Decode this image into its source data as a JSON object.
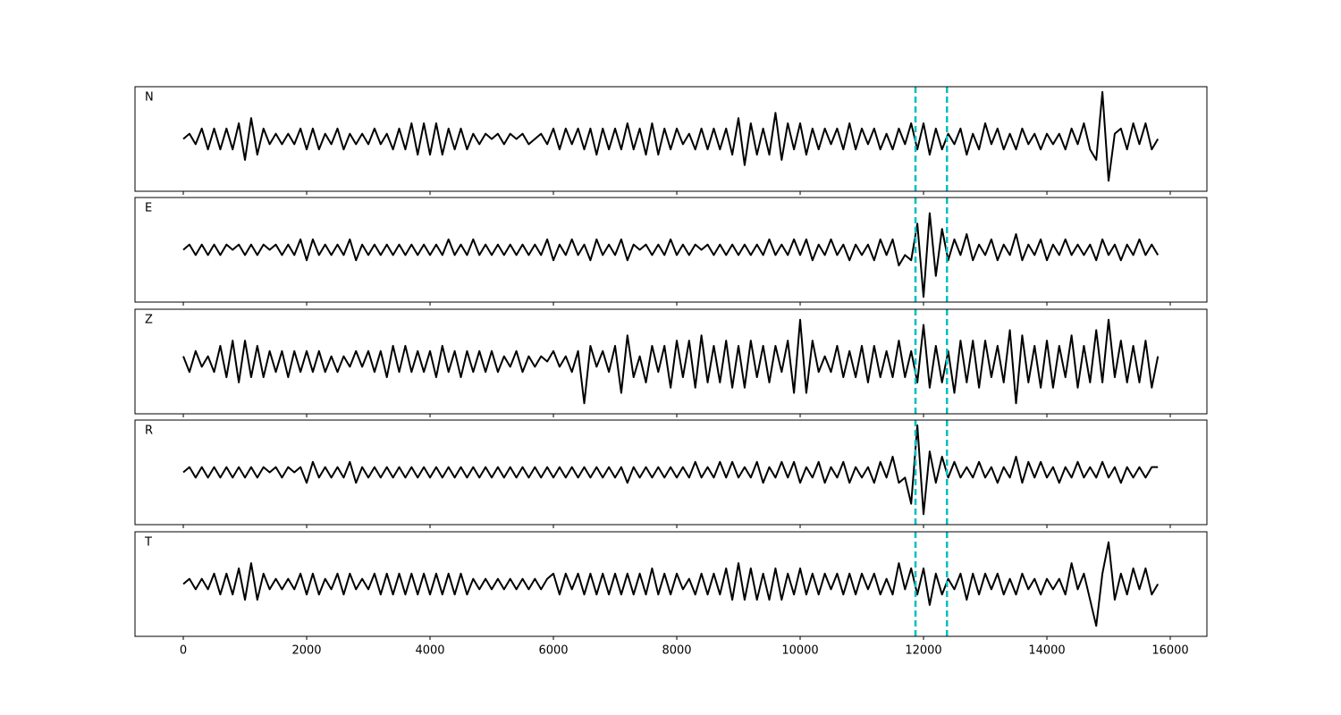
{
  "chart_data": {
    "type": "line",
    "x": [
      0,
      100,
      200,
      300,
      400,
      500,
      600,
      700,
      800,
      900,
      1000,
      1100,
      1200,
      1300,
      1400,
      1500,
      1600,
      1700,
      1800,
      1900,
      2000,
      2100,
      2200,
      2300,
      2400,
      2500,
      2600,
      2700,
      2800,
      2900,
      3000,
      3100,
      3200,
      3300,
      3400,
      3500,
      3600,
      3700,
      3800,
      3900,
      4000,
      4100,
      4200,
      4300,
      4400,
      4500,
      4600,
      4700,
      4800,
      4900,
      5000,
      5100,
      5200,
      5300,
      5400,
      5500,
      5600,
      5700,
      5800,
      5900,
      6000,
      6100,
      6200,
      6300,
      6400,
      6500,
      6600,
      6700,
      6800,
      6900,
      7000,
      7100,
      7200,
      7300,
      7400,
      7500,
      7600,
      7700,
      7800,
      7900,
      8000,
      8100,
      8200,
      8300,
      8400,
      8500,
      8600,
      8700,
      8800,
      8900,
      9000,
      9100,
      9200,
      9300,
      9400,
      9500,
      9600,
      9700,
      9800,
      9900,
      10000,
      10100,
      10200,
      10300,
      10400,
      10500,
      10600,
      10700,
      10800,
      10900,
      11000,
      11100,
      11200,
      11300,
      11400,
      11500,
      11600,
      11700,
      11800,
      11900,
      12000,
      12100,
      12200,
      12300,
      12400,
      12500,
      12600,
      12700,
      12800,
      12900,
      13000,
      13100,
      13200,
      13300,
      13400,
      13500,
      13600,
      13700,
      13800,
      13900,
      14000,
      14100,
      14200,
      14300,
      14400,
      14500,
      14600,
      14700,
      14800,
      14900,
      15000,
      15100,
      15200,
      15300,
      15400,
      15500,
      15600,
      15700,
      15800
    ],
    "series": [
      {
        "name": "N",
        "color": "#000000",
        "values": [
          0,
          1,
          -1,
          2,
          -2,
          2,
          -2,
          2,
          -2,
          3,
          -4,
          4,
          -3,
          2,
          -1,
          1,
          -1,
          1,
          -1,
          2,
          -2,
          2,
          -2,
          1,
          -1,
          2,
          -2,
          1,
          -1,
          1,
          -1,
          2,
          -1,
          1,
          -2,
          2,
          -2,
          3,
          -3,
          3,
          -3,
          3,
          -3,
          2,
          -2,
          2,
          -2,
          1,
          -1,
          1,
          0,
          1,
          -1,
          1,
          0,
          1,
          -1,
          0,
          1,
          -1,
          2,
          -2,
          2,
          -1,
          2,
          -2,
          2,
          -3,
          2,
          -2,
          2,
          -2,
          3,
          -2,
          2,
          -3,
          3,
          -3,
          2,
          -2,
          2,
          -1,
          1,
          -2,
          2,
          -2,
          2,
          -2,
          2,
          -3,
          4,
          -5,
          3,
          -3,
          2,
          -3,
          5,
          -4,
          3,
          -2,
          3,
          -3,
          2,
          -2,
          2,
          -1,
          2,
          -2,
          3,
          -2,
          2,
          -1,
          2,
          -2,
          1,
          -2,
          2,
          -1,
          3,
          -2,
          3,
          -3,
          2,
          -2,
          1,
          -1,
          2,
          -3,
          1,
          -2,
          3,
          -1,
          2,
          -2,
          1,
          -2,
          2,
          -1,
          1,
          -2,
          1,
          -1,
          1,
          -2,
          2,
          -1,
          3,
          -2,
          -4,
          9,
          -8,
          1,
          2,
          -2,
          3,
          -1,
          3,
          -2,
          0
        ]
      },
      {
        "name": "E",
        "color": "#000000",
        "values": [
          0,
          1,
          -1,
          1,
          -1,
          1,
          -1,
          1,
          0,
          1,
          -1,
          1,
          -1,
          1,
          0,
          1,
          -1,
          1,
          -1,
          2,
          -2,
          2,
          -1,
          1,
          -1,
          1,
          -1,
          2,
          -2,
          1,
          -1,
          1,
          -1,
          1,
          -1,
          1,
          -1,
          1,
          -1,
          1,
          -1,
          1,
          -1,
          2,
          -1,
          1,
          -1,
          2,
          -1,
          1,
          -1,
          1,
          -1,
          1,
          -1,
          1,
          -1,
          1,
          -1,
          2,
          -2,
          1,
          -1,
          2,
          -1,
          1,
          -2,
          2,
          -1,
          1,
          -1,
          2,
          -2,
          1,
          0,
          1,
          -1,
          1,
          -1,
          2,
          -1,
          1,
          -1,
          1,
          0,
          1,
          -1,
          1,
          -1,
          1,
          -1,
          1,
          -1,
          1,
          -1,
          2,
          -1,
          1,
          -1,
          2,
          -1,
          2,
          -2,
          1,
          -1,
          2,
          -1,
          1,
          -2,
          1,
          -1,
          1,
          -2,
          2,
          -1,
          2,
          -3,
          -1,
          -2,
          5,
          -9,
          7,
          -5,
          4,
          -2,
          2,
          -1,
          3,
          -2,
          1,
          -1,
          2,
          -2,
          1,
          -1,
          3,
          -2,
          1,
          -1,
          2,
          -2,
          1,
          -1,
          2,
          -1,
          1,
          -1,
          1,
          -2,
          2,
          -1,
          1,
          -2,
          1,
          -1,
          2,
          -1,
          1,
          -1
        ]
      },
      {
        "name": "Z",
        "color": "#000000",
        "values": [
          1,
          -2,
          2,
          -1,
          1,
          -2,
          3,
          -3,
          4,
          -4,
          4,
          -3,
          3,
          -3,
          2,
          -2,
          2,
          -3,
          2,
          -2,
          2,
          -2,
          2,
          -2,
          1,
          -2,
          1,
          -1,
          2,
          -1,
          2,
          -2,
          2,
          -3,
          3,
          -2,
          3,
          -2,
          2,
          -2,
          2,
          -3,
          3,
          -2,
          2,
          -3,
          2,
          -2,
          2,
          -2,
          2,
          -2,
          1,
          -1,
          2,
          -2,
          1,
          -1,
          1,
          0,
          2,
          -1,
          1,
          -2,
          2,
          -8,
          3,
          -1,
          2,
          -2,
          3,
          -6,
          5,
          -3,
          1,
          -4,
          3,
          -2,
          3,
          -5,
          4,
          -3,
          4,
          -5,
          5,
          -4,
          3,
          -4,
          4,
          -5,
          3,
          -5,
          4,
          -3,
          3,
          -4,
          3,
          -2,
          4,
          -6,
          8,
          -6,
          4,
          -2,
          1,
          -2,
          3,
          -3,
          2,
          -3,
          3,
          -4,
          3,
          -3,
          2,
          -3,
          4,
          -3,
          2,
          -4,
          7,
          -5,
          3,
          -4,
          2,
          -6,
          4,
          -4,
          4,
          -5,
          4,
          -3,
          3,
          -4,
          6,
          -8,
          5,
          -4,
          3,
          -5,
          4,
          -5,
          3,
          -3,
          5,
          -5,
          3,
          -4,
          6,
          -4,
          8,
          -3,
          4,
          -4,
          3,
          -4,
          4,
          -5,
          1
        ]
      },
      {
        "name": "R",
        "color": "#000000",
        "values": [
          0,
          1,
          -1,
          1,
          -1,
          1,
          -1,
          1,
          -1,
          1,
          -1,
          1,
          -1,
          1,
          0,
          1,
          -1,
          1,
          0,
          1,
          -2,
          2,
          -1,
          1,
          -1,
          1,
          -1,
          2,
          -2,
          1,
          -1,
          1,
          -1,
          1,
          -1,
          1,
          -1,
          1,
          -1,
          1,
          -1,
          1,
          -1,
          1,
          -1,
          1,
          -1,
          1,
          -1,
          1,
          -1,
          1,
          -1,
          1,
          -1,
          1,
          -1,
          1,
          -1,
          1,
          -1,
          1,
          -1,
          1,
          -1,
          1,
          -1,
          1,
          -1,
          1,
          -1,
          1,
          -2,
          1,
          -1,
          1,
          -1,
          1,
          -1,
          1,
          -1,
          1,
          -1,
          2,
          -1,
          1,
          -1,
          2,
          -1,
          2,
          -1,
          1,
          -1,
          2,
          -2,
          1,
          -1,
          2,
          -1,
          2,
          -2,
          1,
          -1,
          2,
          -2,
          1,
          -1,
          2,
          -2,
          1,
          -1,
          1,
          -2,
          2,
          -1,
          3,
          -2,
          -1,
          -6,
          9,
          -8,
          4,
          -2,
          3,
          -1,
          2,
          -1,
          1,
          -1,
          2,
          -1,
          1,
          -2,
          1,
          -1,
          3,
          -2,
          2,
          -1,
          2,
          -1,
          1,
          -2,
          1,
          -1,
          2,
          -1,
          1,
          -1,
          2,
          -1,
          1,
          -2,
          1,
          -1,
          1,
          -1,
          1,
          1
        ]
      },
      {
        "name": "T",
        "color": "#000000",
        "values": [
          0,
          1,
          -1,
          1,
          -1,
          2,
          -2,
          2,
          -2,
          3,
          -3,
          4,
          -3,
          2,
          -1,
          1,
          -1,
          1,
          -1,
          2,
          -2,
          2,
          -2,
          1,
          -1,
          2,
          -2,
          2,
          -1,
          1,
          -1,
          2,
          -2,
          2,
          -2,
          2,
          -2,
          2,
          -2,
          2,
          -2,
          2,
          -2,
          2,
          -2,
          2,
          -2,
          1,
          -1,
          1,
          -1,
          1,
          -1,
          1,
          -1,
          1,
          -1,
          1,
          -1,
          1,
          2,
          -2,
          2,
          -1,
          2,
          -2,
          2,
          -2,
          2,
          -2,
          2,
          -2,
          2,
          -2,
          2,
          -2,
          3,
          -2,
          2,
          -2,
          2,
          -1,
          1,
          -2,
          2,
          -2,
          2,
          -2,
          3,
          -3,
          4,
          -3,
          3,
          -3,
          2,
          -3,
          3,
          -3,
          2,
          -2,
          3,
          -2,
          2,
          -2,
          2,
          -1,
          2,
          -2,
          2,
          -2,
          2,
          -1,
          2,
          -2,
          1,
          -2,
          4,
          -1,
          3,
          -2,
          3,
          -4,
          2,
          -2,
          1,
          -1,
          2,
          -3,
          2,
          -2,
          2,
          -1,
          2,
          -2,
          1,
          -2,
          2,
          -1,
          1,
          -2,
          1,
          -1,
          1,
          -2,
          4,
          -1,
          2,
          -3,
          -8,
          2,
          8,
          -3,
          2,
          -2,
          3,
          -1,
          3,
          -2,
          0
        ]
      }
    ],
    "ylim": [
      -10,
      10
    ],
    "xlim": [
      -783,
      16594
    ],
    "xticks": [
      0,
      2000,
      4000,
      6000,
      8000,
      10000,
      12000,
      14000,
      16000
    ],
    "vlines": [
      11870,
      12380
    ],
    "vline_color": "#00bfbf"
  }
}
